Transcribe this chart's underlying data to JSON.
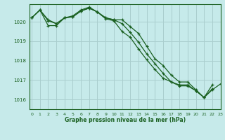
{
  "title": "Graphe pression niveau de la mer (hPa)",
  "bg_color": "#c6eaea",
  "grid_color": "#aacece",
  "line_color": "#1a6020",
  "ylim": [
    1015.5,
    1020.9
  ],
  "yticks": [
    1016,
    1017,
    1018,
    1019,
    1020
  ],
  "xlim": [
    -0.3,
    23
  ],
  "xticks": [
    0,
    1,
    2,
    3,
    4,
    5,
    6,
    7,
    8,
    9,
    10,
    11,
    12,
    13,
    14,
    15,
    16,
    17,
    18,
    19,
    20,
    21,
    22,
    23
  ],
  "series": {
    "line1": [
      1020.2,
      1020.6,
      1020.1,
      1019.9,
      1020.2,
      1020.25,
      1020.55,
      1020.7,
      1020.5,
      1020.2,
      1020.1,
      1020.1,
      1019.75,
      1019.4,
      1018.75,
      1018.1,
      1017.75,
      1017.25,
      1016.9,
      1016.9,
      1016.5,
      1016.1,
      1016.75,
      null
    ],
    "line2": [
      1020.2,
      1020.6,
      1020.05,
      1019.9,
      1020.2,
      1020.25,
      1020.55,
      1020.7,
      1020.5,
      1020.2,
      1020.1,
      1019.9,
      1019.45,
      1018.95,
      1018.35,
      1017.85,
      1017.35,
      1016.9,
      1016.75,
      1016.75,
      1016.45,
      1016.1,
      1016.55,
      null
    ],
    "line3": [
      1020.2,
      1020.6,
      1019.8,
      1019.8,
      1020.2,
      1020.3,
      1020.6,
      1020.75,
      1020.5,
      1020.15,
      1020.05,
      1019.5,
      1019.2,
      1018.6,
      1018.05,
      1017.55,
      1017.1,
      1016.9,
      1016.7,
      1016.7,
      1016.45,
      1016.1,
      1016.5,
      1016.8
    ]
  }
}
